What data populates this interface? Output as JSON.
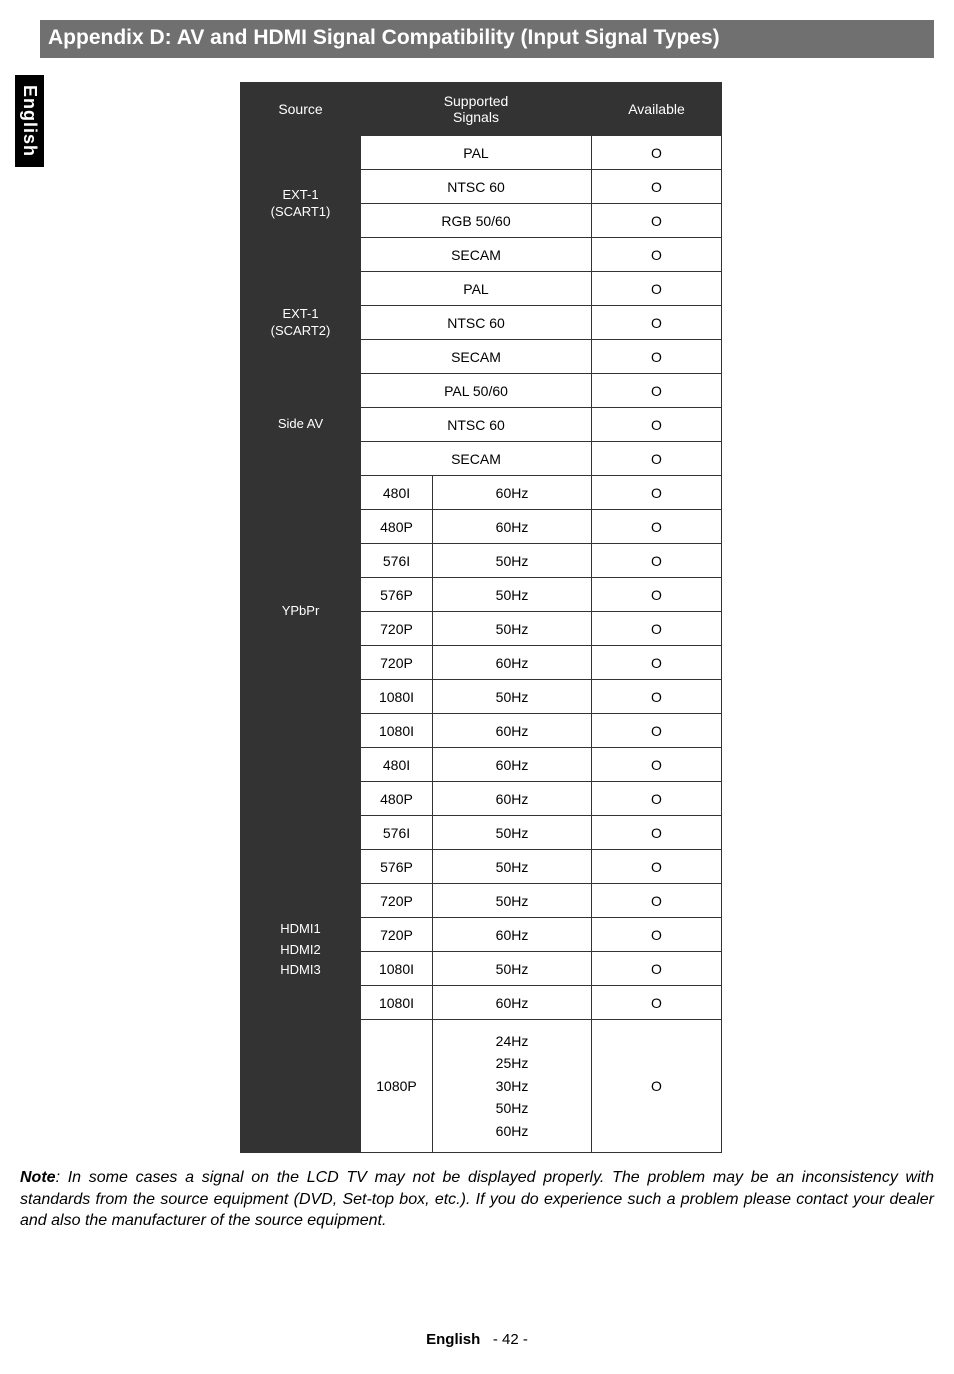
{
  "title": "Appendix D: AV and HDMI Signal Compatibility (Input Signal Types)",
  "sideTab": "English",
  "headers": {
    "source": "Source",
    "signals": "Supported\nSignals",
    "available": "Available"
  },
  "groups": [
    {
      "source": "EXT-1\n(SCART1)",
      "rows": [
        {
          "sig": "PAL",
          "span2": true,
          "av": "O"
        },
        {
          "sig": "NTSC 60",
          "span2": true,
          "av": "O"
        },
        {
          "sig": "RGB 50/60",
          "span2": true,
          "av": "O"
        },
        {
          "sig": "SECAM",
          "span2": true,
          "av": "O"
        }
      ]
    },
    {
      "source": "EXT-1\n(SCART2)",
      "rows": [
        {
          "sig": "PAL",
          "span2": true,
          "av": "O"
        },
        {
          "sig": "NTSC 60",
          "span2": true,
          "av": "O"
        },
        {
          "sig": "SECAM",
          "span2": true,
          "av": "O"
        }
      ]
    },
    {
      "source": "Side AV",
      "rows": [
        {
          "sig": "PAL 50/60",
          "span2": true,
          "av": "O"
        },
        {
          "sig": "NTSC 60",
          "span2": true,
          "av": "O"
        },
        {
          "sig": "SECAM",
          "span2": true,
          "av": "O"
        }
      ]
    },
    {
      "source": "YPbPr",
      "rows": [
        {
          "sigA": "480I",
          "sigB": "60Hz",
          "av": "O"
        },
        {
          "sigA": "480P",
          "sigB": "60Hz",
          "av": "O"
        },
        {
          "sigA": "576I",
          "sigB": "50Hz",
          "av": "O"
        },
        {
          "sigA": "576P",
          "sigB": "50Hz",
          "av": "O"
        },
        {
          "sigA": "720P",
          "sigB": "50Hz",
          "av": "O"
        },
        {
          "sigA": "720P",
          "sigB": "60Hz",
          "av": "O"
        },
        {
          "sigA": "1080I",
          "sigB": "50Hz",
          "av": "O"
        },
        {
          "sigA": "1080I",
          "sigB": "60Hz",
          "av": "O"
        }
      ]
    },
    {
      "source": "HDMI1\nHDMI2\nHDMI3",
      "rows": [
        {
          "sigA": "480I",
          "sigB": "60Hz",
          "av": "O"
        },
        {
          "sigA": "480P",
          "sigB": "60Hz",
          "av": "O"
        },
        {
          "sigA": "576I",
          "sigB": "50Hz",
          "av": "O"
        },
        {
          "sigA": "576P",
          "sigB": "50Hz",
          "av": "O"
        },
        {
          "sigA": "720P",
          "sigB": "50Hz",
          "av": "O"
        },
        {
          "sigA": "720P",
          "sigB": "60Hz",
          "av": "O"
        },
        {
          "sigA": "1080I",
          "sigB": "50Hz",
          "av": "O"
        },
        {
          "sigA": "1080I",
          "sigB": "60Hz",
          "av": "O"
        },
        {
          "sigA": "1080P",
          "sigB": "24Hz\n25Hz\n30Hz\n50Hz\n60Hz",
          "av": "O",
          "multi": true
        }
      ]
    }
  ],
  "noteLabel": "Note",
  "noteText": ": In some cases a signal on the LCD TV may not be displayed properly. The problem may be an inconsistency with standards from the source equipment (DVD, Set-top box, etc.). If you do experience such a problem please contact your dealer and also the manufacturer of the source equipment.",
  "footer": {
    "lang": "English",
    "page": "- 42 -"
  }
}
